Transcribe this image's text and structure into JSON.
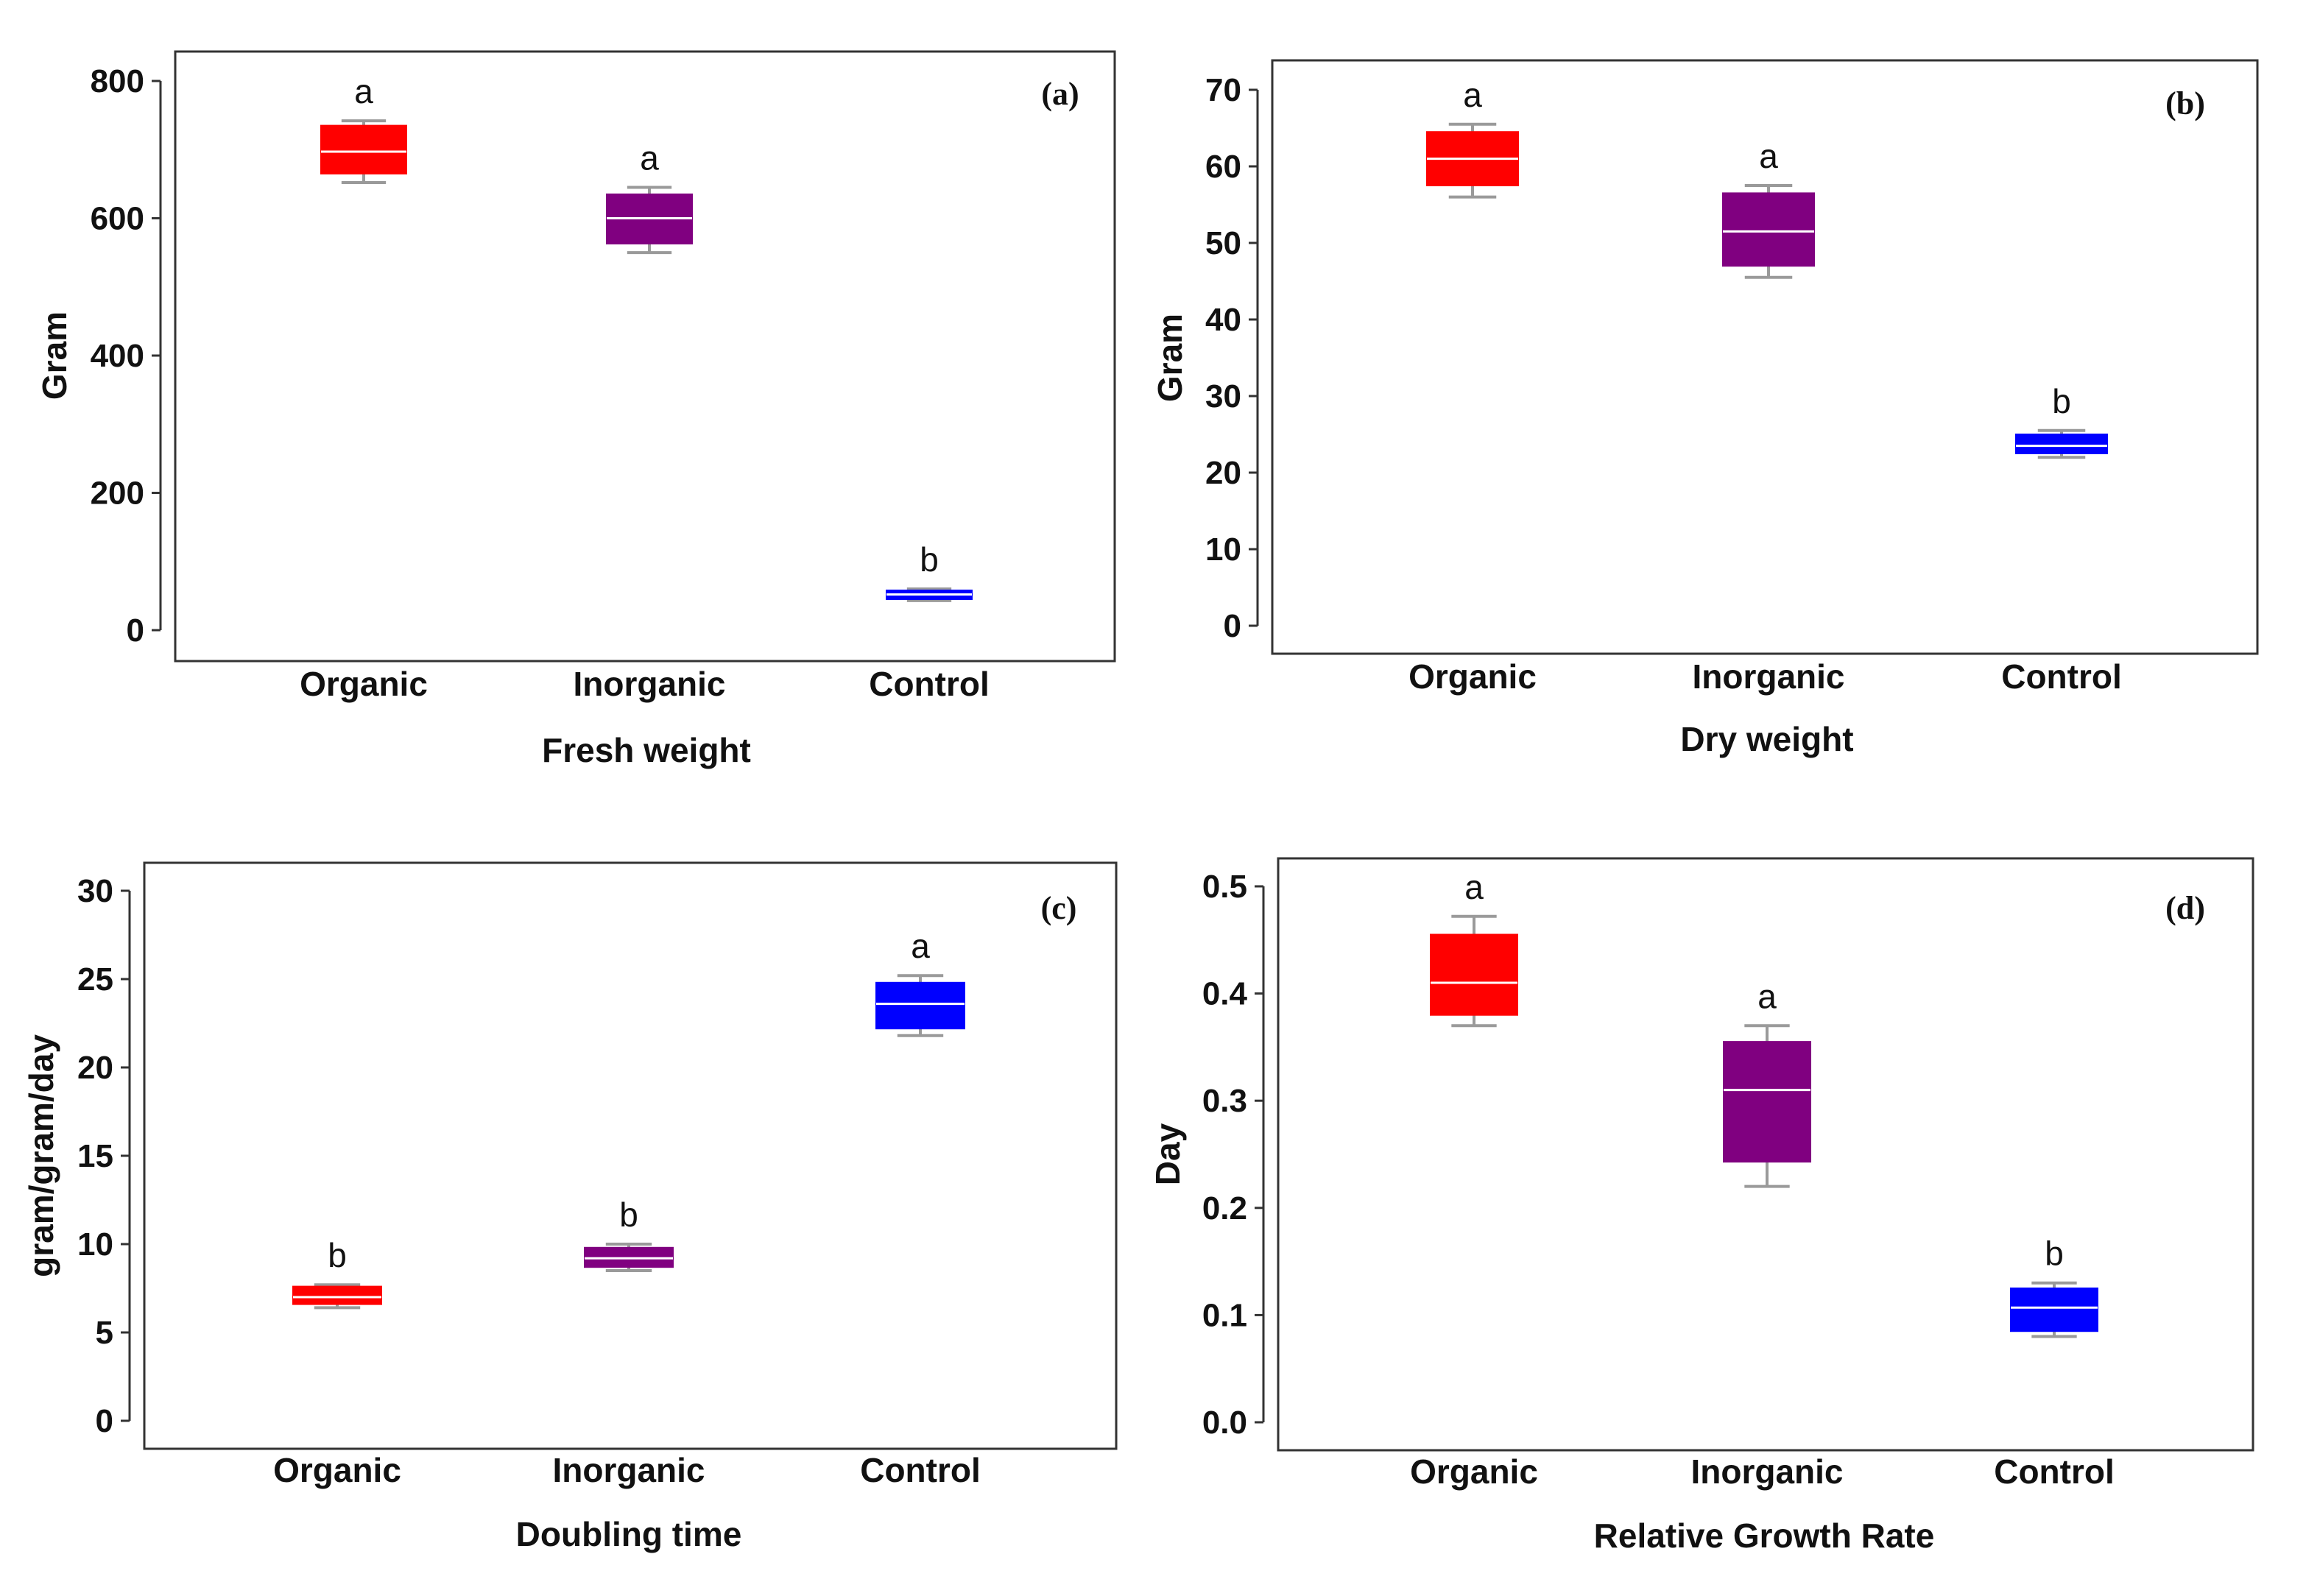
{
  "figure": {
    "colors": {
      "Organic": "#ff0000",
      "Inorganic": "#800080",
      "Control": "#0000ff"
    }
  },
  "chart_data": [
    {
      "type": "box",
      "panel_label": "(a)",
      "xlabel": "Fresh weight",
      "ylabel": "Gram",
      "ylim": [
        0,
        800
      ],
      "yticks": [
        0,
        200,
        400,
        600,
        800
      ],
      "ytick_labels": [
        "0",
        "200",
        "400",
        "600",
        "800"
      ],
      "categories": [
        "Organic",
        "Inorganic",
        "Control"
      ],
      "boxes": [
        {
          "category": "Organic",
          "min": 652,
          "q1": 665,
          "median": 697,
          "q3": 735,
          "max": 742,
          "significance": "a"
        },
        {
          "category": "Inorganic",
          "min": 550,
          "q1": 563,
          "median": 600,
          "q3": 635,
          "max": 645,
          "significance": "a"
        },
        {
          "category": "Control",
          "min": 43,
          "q1": 45,
          "median": 52,
          "q3": 58,
          "max": 60,
          "significance": "b"
        }
      ]
    },
    {
      "type": "box",
      "panel_label": "(b)",
      "xlabel": "Dry weight",
      "ylabel": "Gram",
      "ylim": [
        0,
        70
      ],
      "yticks": [
        0,
        10,
        20,
        30,
        40,
        50,
        60,
        70
      ],
      "ytick_labels": [
        "0",
        "10",
        "20",
        "30",
        "40",
        "50",
        "60",
        "70"
      ],
      "categories": [
        "Organic",
        "Inorganic",
        "Control"
      ],
      "boxes": [
        {
          "category": "Organic",
          "min": 56,
          "q1": 57.5,
          "median": 61,
          "q3": 64.5,
          "max": 65.5,
          "significance": "a"
        },
        {
          "category": "Inorganic",
          "min": 45.5,
          "q1": 47,
          "median": 51.5,
          "q3": 56.5,
          "max": 57.5,
          "significance": "a"
        },
        {
          "category": "Control",
          "min": 22,
          "q1": 22.5,
          "median": 23.5,
          "q3": 25,
          "max": 25.5,
          "significance": "b"
        }
      ]
    },
    {
      "type": "box",
      "panel_label": "(c)",
      "xlabel": "Doubling time",
      "ylabel": "gram/gram/day",
      "ylim": [
        0,
        30
      ],
      "yticks": [
        0,
        5,
        10,
        15,
        20,
        25,
        30
      ],
      "ytick_labels": [
        "0",
        "5",
        "10",
        "15",
        "20",
        "25",
        "30"
      ],
      "categories": [
        "Organic",
        "Inorganic",
        "Control"
      ],
      "boxes": [
        {
          "category": "Organic",
          "min": 6.4,
          "q1": 6.6,
          "median": 7.0,
          "q3": 7.6,
          "max": 7.7,
          "significance": "b"
        },
        {
          "category": "Inorganic",
          "min": 8.5,
          "q1": 8.7,
          "median": 9.2,
          "q3": 9.8,
          "max": 10.0,
          "significance": "b"
        },
        {
          "category": "Control",
          "min": 21.8,
          "q1": 22.2,
          "median": 23.6,
          "q3": 24.8,
          "max": 25.2,
          "significance": "a"
        }
      ]
    },
    {
      "type": "box",
      "panel_label": "(d)",
      "xlabel": "Relative Growth Rate",
      "ylabel": "Day",
      "ylim": [
        0,
        0.5
      ],
      "yticks": [
        0,
        0.1,
        0.2,
        0.3,
        0.4,
        0.5
      ],
      "ytick_labels": [
        "0.0",
        "0.1",
        "0.2",
        "0.3",
        "0.4",
        "0.5"
      ],
      "categories": [
        "Organic",
        "Inorganic",
        "Control"
      ],
      "boxes": [
        {
          "category": "Organic",
          "min": 0.37,
          "q1": 0.38,
          "median": 0.41,
          "q3": 0.455,
          "max": 0.472,
          "significance": "a"
        },
        {
          "category": "Inorganic",
          "min": 0.22,
          "q1": 0.243,
          "median": 0.31,
          "q3": 0.355,
          "max": 0.37,
          "significance": "a"
        },
        {
          "category": "Control",
          "min": 0.08,
          "q1": 0.085,
          "median": 0.107,
          "q3": 0.125,
          "max": 0.13,
          "significance": "b"
        }
      ]
    }
  ]
}
